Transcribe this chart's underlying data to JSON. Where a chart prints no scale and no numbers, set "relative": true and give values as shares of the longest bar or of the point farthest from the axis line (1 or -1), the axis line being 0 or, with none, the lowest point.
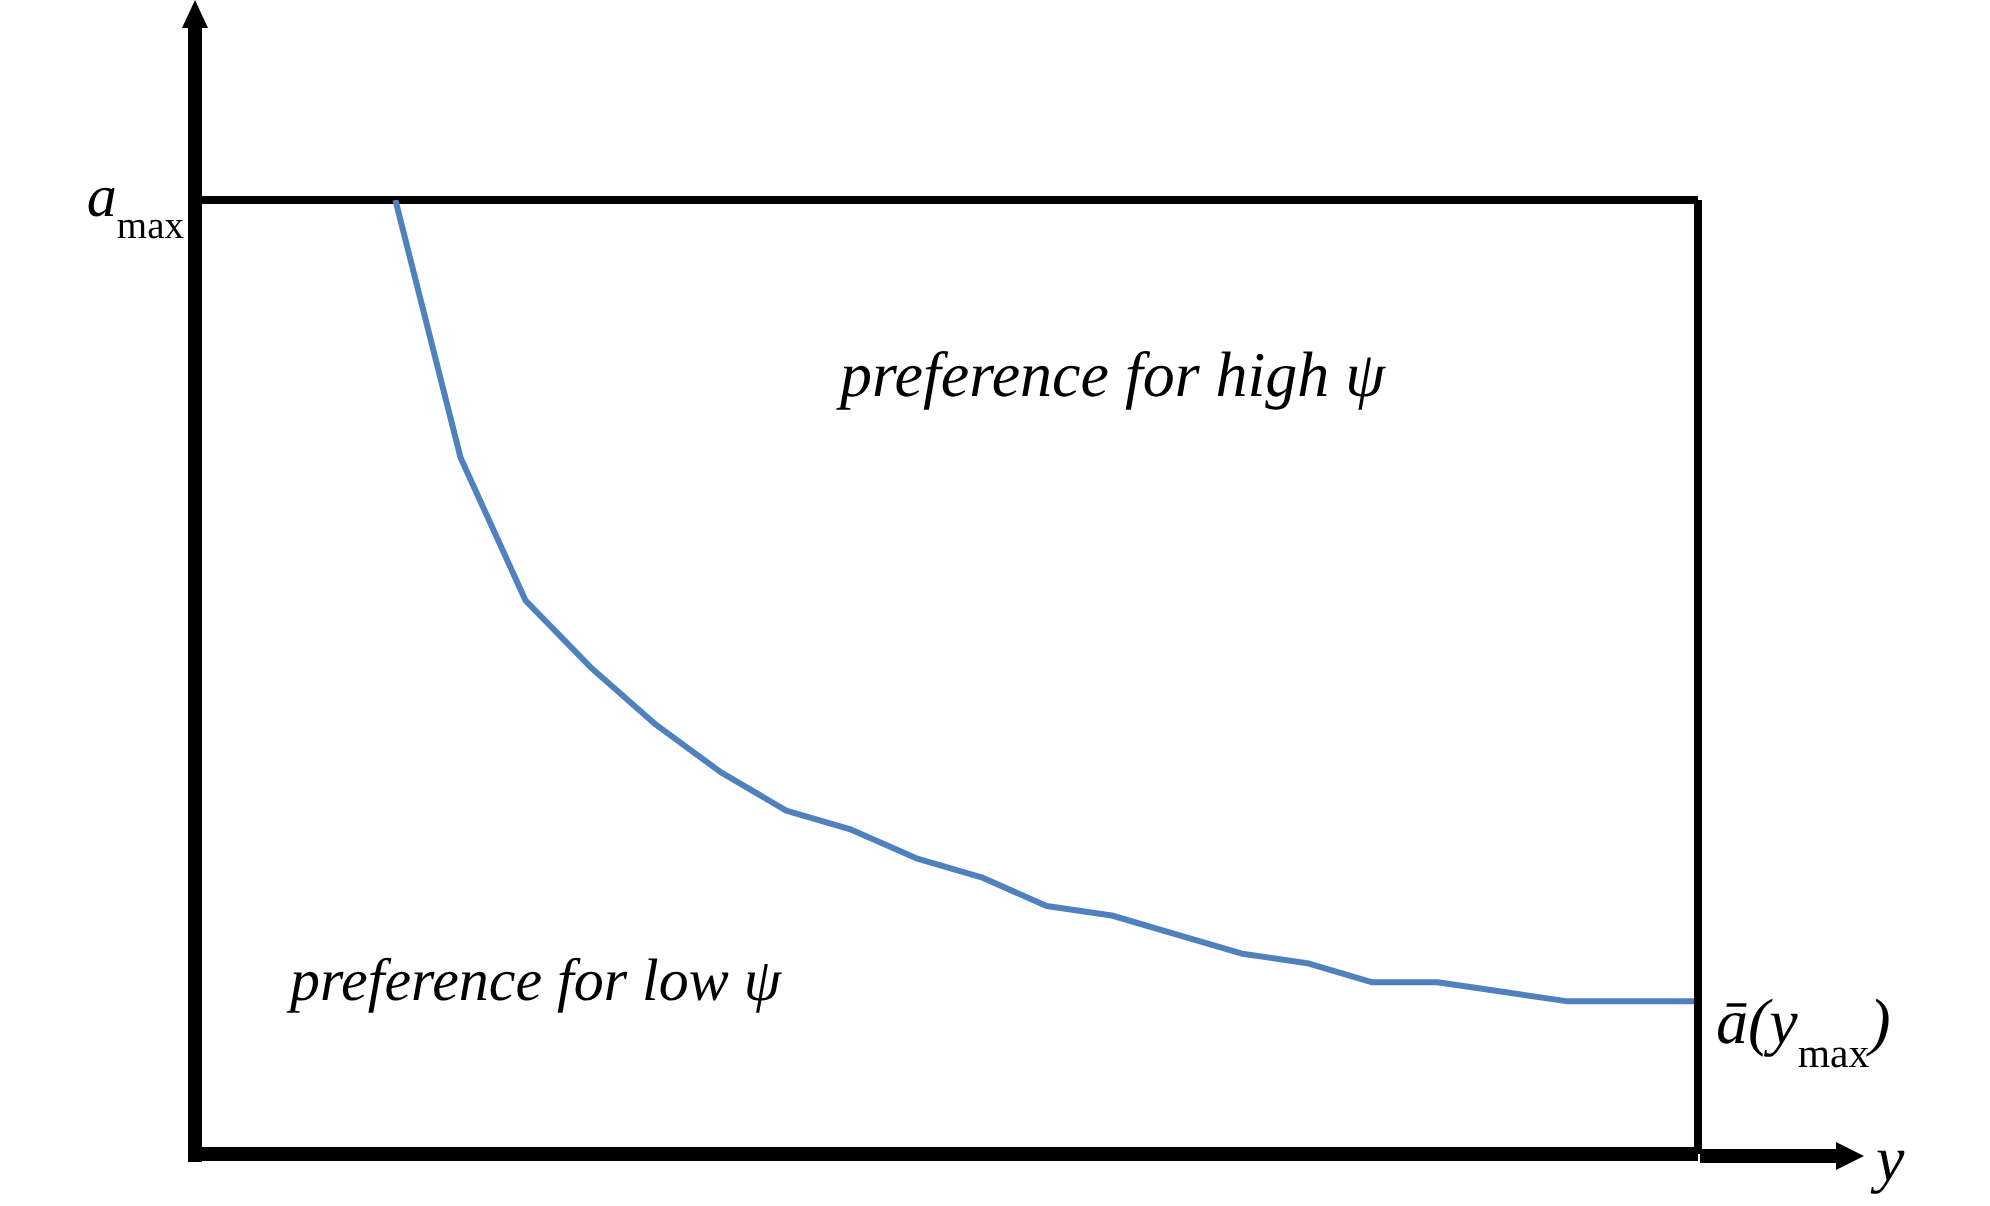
{
  "chart_data": {
    "type": "line",
    "relative": true,
    "xlabel": "y",
    "categories": [
      null,
      null,
      null,
      null,
      null,
      null,
      null,
      null,
      null,
      null,
      null,
      null,
      null,
      null,
      null,
      null,
      null,
      null,
      null,
      null,
      null,
      null,
      null,
      null
    ],
    "series": [
      {
        "color": "#4f81bd",
        "values": [
          null,
          null,
          null,
          1,
          0.73,
          0.58,
          0.51,
          0.45,
          0.4,
          0.36,
          0.34,
          0.31,
          0.29,
          0.26,
          0.25,
          0.23,
          0.21,
          0.2,
          0.18,
          0.18,
          0.17,
          0.16,
          0.16,
          0.16
        ]
      }
    ],
    "ref_lines": [
      {
        "axis": "y",
        "value": 1,
        "label": "a$_{max}$",
        "color": "#000000"
      }
    ],
    "annotations": [
      "preference  for  high ψ",
      "preference  for  low ψ",
      "ā(y$_{max}$)"
    ],
    "marker": "none",
    "line_style": "solid"
  }
}
